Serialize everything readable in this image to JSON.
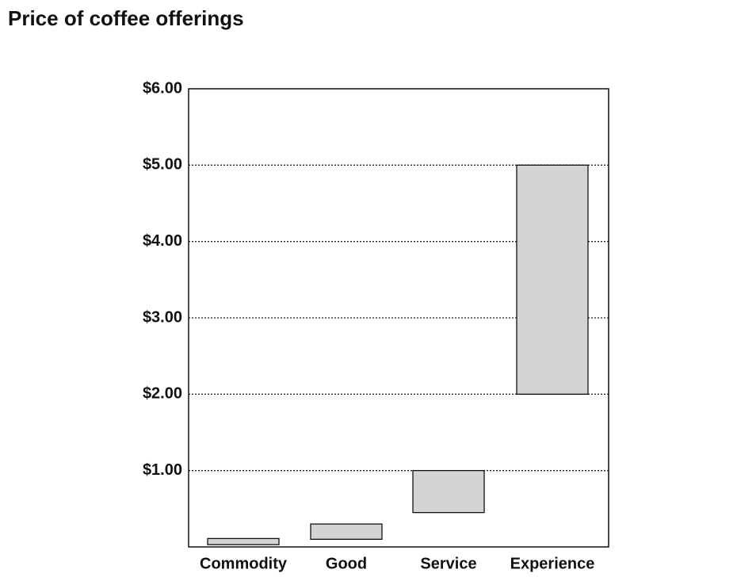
{
  "chart_data": {
    "type": "floating-bar",
    "title": "Price of coffee offerings",
    "categories": [
      "Commodity",
      "Good",
      "Service",
      "Experience"
    ],
    "low": [
      0.03,
      0.1,
      0.45,
      2.0
    ],
    "high": [
      0.11,
      0.3,
      1.0,
      5.0
    ],
    "color": "#d4d4d4",
    "ylim": [
      0,
      6
    ],
    "yticks": [
      {
        "value": 1,
        "label": "$1.00"
      },
      {
        "value": 2,
        "label": "$2.00"
      },
      {
        "value": 3,
        "label": "$3.00"
      },
      {
        "value": 4,
        "label": "$4.00"
      },
      {
        "value": 5,
        "label": "$5.00"
      },
      {
        "value": 6,
        "label": "$6.00"
      }
    ],
    "grid": true
  }
}
